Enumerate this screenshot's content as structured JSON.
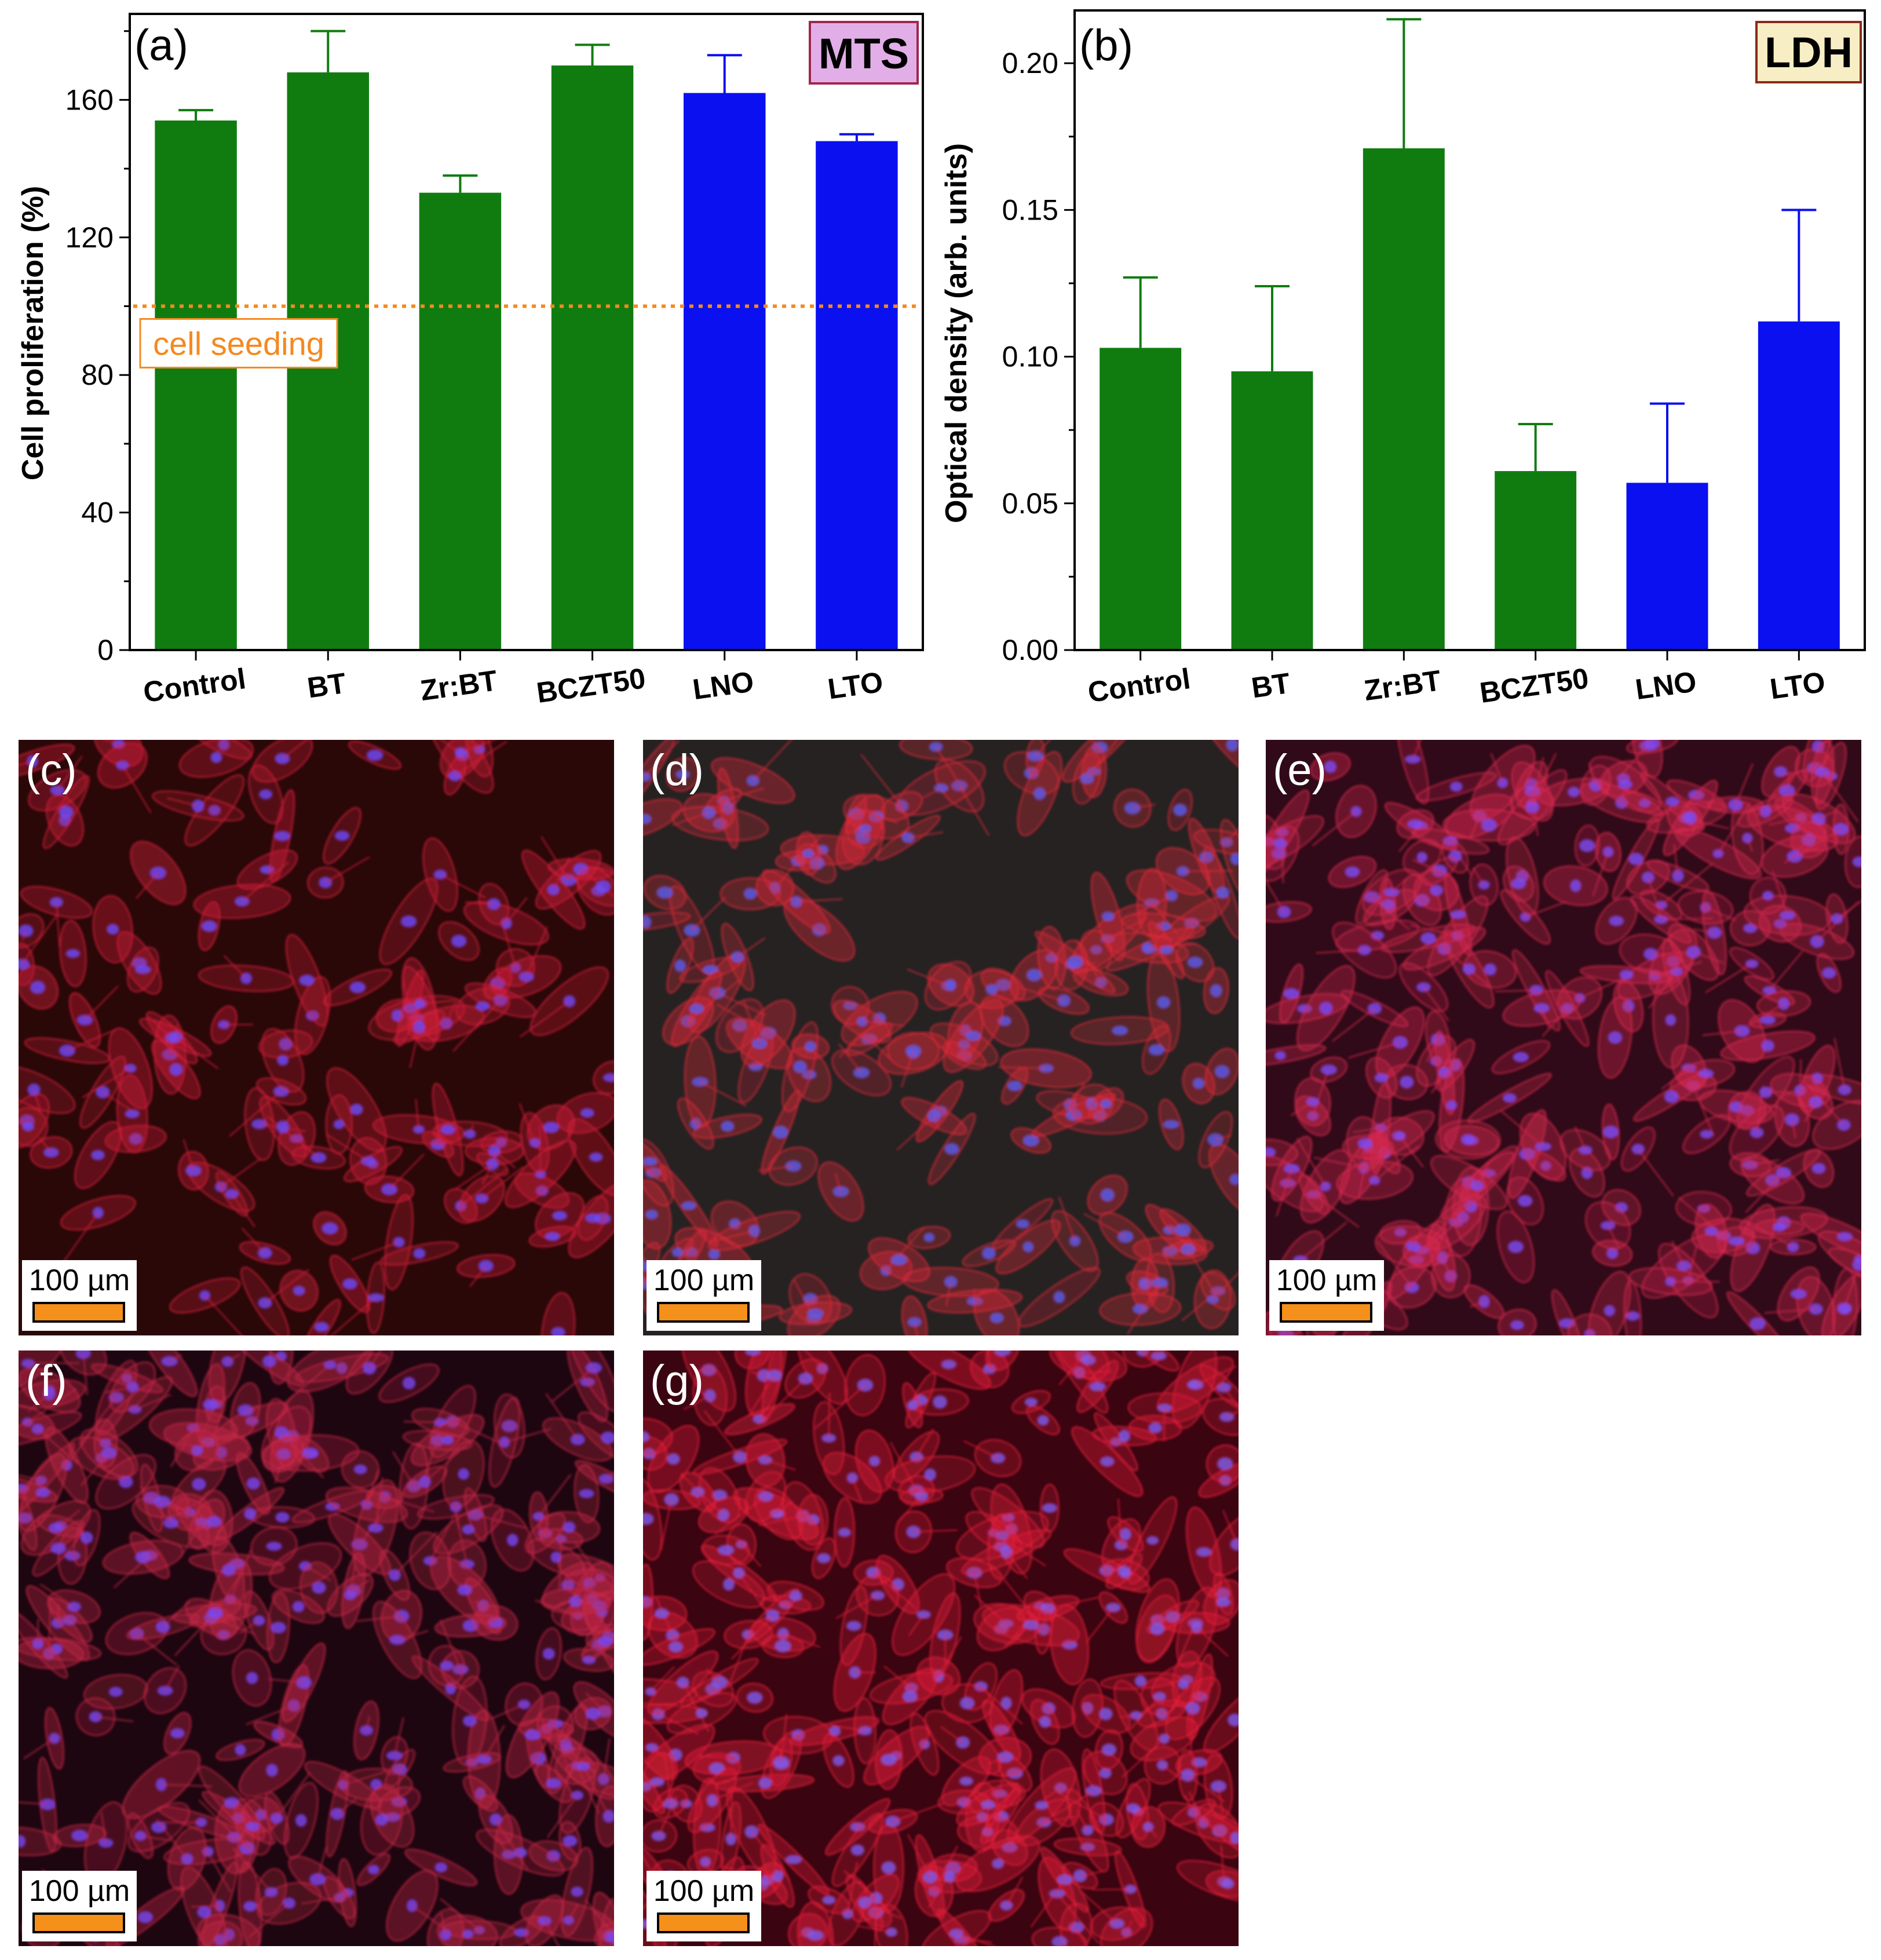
{
  "colors": {
    "ceramic": "#107c10",
    "lithium": "#0a10f0",
    "seeding_line": "#f5891f",
    "mts_badge": "#e2aee8",
    "mts_badge_border": "#a0264c",
    "ldh_badge": "#f8eec5",
    "ldh_badge_border": "#8a2a1a"
  },
  "chart_data": [
    {
      "panel": "(a)",
      "type": "bar",
      "badge": "MTS",
      "ylabel": "Cell proliferation (%)",
      "xlabel": "",
      "ylim": [
        0,
        185
      ],
      "yticks": [
        0,
        40,
        80,
        120,
        160
      ],
      "ytick_labels": [
        "0",
        "40",
        "80",
        "120",
        "160"
      ],
      "categories": [
        "Control",
        "BT",
        "Zr:BT",
        "BCZT50",
        "LNO",
        "LTO"
      ],
      "values": [
        154,
        168,
        133,
        170,
        162,
        148
      ],
      "errors": [
        3,
        12,
        5,
        6,
        11,
        2
      ],
      "bar_colors": [
        "ceramic",
        "ceramic",
        "ceramic",
        "ceramic",
        "lithium",
        "lithium"
      ],
      "reference_line": {
        "value": 100,
        "label": "cell seeding"
      },
      "grid": false
    },
    {
      "panel": "(b)",
      "type": "bar",
      "badge": "LDH",
      "ylabel": "Optical density (arb. units)",
      "xlabel": "",
      "ylim": [
        0,
        0.218
      ],
      "yticks": [
        0,
        0.05,
        0.1,
        0.15,
        0.2
      ],
      "ytick_labels": [
        "0.00",
        "0.05",
        "0.10",
        "0.15",
        "0.20"
      ],
      "categories": [
        "Control",
        "BT",
        "Zr:BT",
        "BCZT50",
        "LNO",
        "LTO"
      ],
      "values": [
        0.103,
        0.095,
        0.171,
        0.061,
        0.057,
        0.112
      ],
      "errors": [
        0.024,
        0.029,
        0.044,
        0.016,
        0.027,
        0.038
      ],
      "bar_colors": [
        "ceramic",
        "ceramic",
        "ceramic",
        "ceramic",
        "lithium",
        "lithium"
      ],
      "grid": false
    }
  ],
  "micrographs": [
    {
      "label": "(c)",
      "scale": "100 µm",
      "bg": "#2a0808",
      "net": "#d8203c",
      "nuc": "#6a4cff",
      "density": 0.45
    },
    {
      "label": "(d)",
      "scale": "100 µm",
      "bg": "#262222",
      "net": "#e02a3a",
      "nuc": "#5a5cf0",
      "density": 0.55
    },
    {
      "label": "(e)",
      "scale": "100 µm",
      "bg": "#300a18",
      "net": "#d82a50",
      "nuc": "#7a4cf8",
      "density": 0.8
    },
    {
      "label": "(f)",
      "scale": "100 µm",
      "bg": "#1e0610",
      "net": "#c82848",
      "nuc": "#7648f4",
      "density": 0.85
    },
    {
      "label": "(g)",
      "scale": "100 µm",
      "bg": "#3a0410",
      "net": "#e8203c",
      "nuc": "#7a5cf0",
      "density": 0.9
    }
  ]
}
